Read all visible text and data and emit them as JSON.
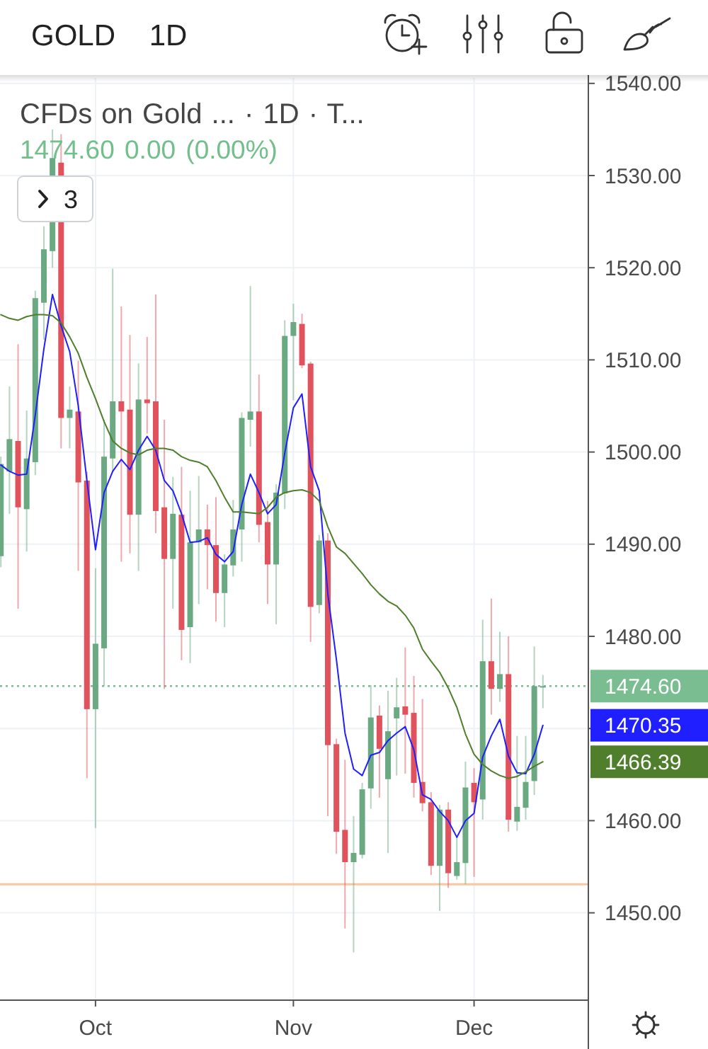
{
  "chart_data": {
    "type": "candlestick",
    "title": "GOLD 1D",
    "subtitle": "CFDs on Gold ... · 1D · T...",
    "annotations": [
      "1474.60 0.00 (0.00%)",
      "3",
      "1470.35",
      "1466.39"
    ],
    "categories": [
      null,
      null,
      null,
      null,
      null,
      null,
      null,
      null,
      null,
      null,
      null,
      "Oct",
      null,
      null,
      null,
      null,
      null,
      null,
      null,
      null,
      null,
      null,
      null,
      null,
      null,
      null,
      null,
      null,
      null,
      null,
      null,
      null,
      null,
      null,
      "Nov",
      null,
      null,
      null,
      null,
      null,
      null,
      null,
      null,
      null,
      null,
      null,
      null,
      null,
      null,
      null,
      null,
      null,
      null,
      null,
      null,
      "Dec",
      null,
      null,
      null,
      null,
      null,
      null,
      null,
      null
    ],
    "ylim": [
      1440.6,
      1540.6
    ],
    "yticks": [
      {
        "value": 1450,
        "label": "1450.00"
      },
      {
        "value": 1460,
        "label": "1460.00"
      },
      {
        "value": 1470,
        "label": null
      },
      {
        "value": 1480,
        "label": "1480.00"
      },
      {
        "value": 1490,
        "label": "1490.00"
      },
      {
        "value": 1500,
        "label": "1500.00"
      },
      {
        "value": 1510,
        "label": "1510.00"
      },
      {
        "value": 1520,
        "label": "1520.00"
      },
      {
        "value": 1530,
        "label": "1530.00"
      },
      {
        "value": 1540,
        "label": "1540.00"
      }
    ],
    "grid": true,
    "ref_lines": [
      {
        "axis": "y",
        "value": 1474.6,
        "label": "1474.60",
        "color": "#79bd90",
        "line_style": "dotted"
      },
      {
        "axis": "y",
        "value": 1453.1,
        "color": "#f8c6a0",
        "line_style": "solid"
      }
    ],
    "ohlc": [
      [
        1488.7,
        1499.5,
        1487.5,
        1498.7
      ],
      [
        1497.9,
        1507.1,
        1493.3,
        1501.4
      ],
      [
        1501.2,
        1511.7,
        1483.0,
        1494.0
      ],
      [
        1493.8,
        1504.5,
        1489.2,
        1499.3
      ],
      [
        1498.9,
        1517.5,
        1497.5,
        1516.7
      ],
      [
        1516.2,
        1524.5,
        1512.2,
        1522.0
      ],
      [
        1521.8,
        1535.0,
        1520.0,
        1531.9
      ],
      [
        1531.4,
        1534.5,
        1500.4,
        1503.7
      ],
      [
        1503.7,
        1507.1,
        1500.4,
        1504.6
      ],
      [
        1504.4,
        1509.9,
        1487.1,
        1496.7
      ],
      [
        1496.9,
        1497.9,
        1464.6,
        1472.1
      ],
      [
        1472.1,
        1487.4,
        1459.2,
        1479.2
      ],
      [
        1478.7,
        1503.5,
        1474.6,
        1499.5
      ],
      [
        1499.3,
        1519.9,
        1497.9,
        1505.5
      ],
      [
        1505.5,
        1515.8,
        1488.1,
        1504.4
      ],
      [
        1504.6,
        1512.7,
        1489.0,
        1493.2
      ],
      [
        1493.2,
        1509.6,
        1487.1,
        1505.7
      ],
      [
        1505.7,
        1512.5,
        1502.0,
        1505.3
      ],
      [
        1505.5,
        1517.1,
        1491.2,
        1493.6
      ],
      [
        1494.0,
        1503.5,
        1474.3,
        1488.4
      ],
      [
        1488.4,
        1497.3,
        1483.0,
        1493.3
      ],
      [
        1493.2,
        1498.4,
        1477.4,
        1480.7
      ],
      [
        1481.0,
        1495.8,
        1477.1,
        1490.2
      ],
      [
        1490.2,
        1497.4,
        1483.5,
        1491.6
      ],
      [
        1491.6,
        1494.3,
        1485.1,
        1489.9
      ],
      [
        1489.9,
        1495.1,
        1481.6,
        1484.7
      ],
      [
        1484.7,
        1488.9,
        1481.0,
        1487.8
      ],
      [
        1487.7,
        1494.8,
        1486.5,
        1491.6
      ],
      [
        1491.6,
        1504.3,
        1488.1,
        1503.7
      ],
      [
        1503.5,
        1518.0,
        1500.6,
        1504.4
      ],
      [
        1504.4,
        1508.4,
        1490.2,
        1492.1
      ],
      [
        1492.4,
        1494.7,
        1483.5,
        1487.8
      ],
      [
        1487.8,
        1496.5,
        1481.3,
        1495.6
      ],
      [
        1495.5,
        1514.3,
        1493.8,
        1512.6
      ],
      [
        1512.6,
        1516.1,
        1505.6,
        1514.1
      ],
      [
        1513.9,
        1515.0,
        1509.1,
        1509.4
      ],
      [
        1509.6,
        1509.8,
        1479.4,
        1483.2
      ],
      [
        1483.4,
        1491.0,
        1482.5,
        1490.4
      ],
      [
        1490.4,
        1491.2,
        1460.5,
        1468.2
      ],
      [
        1468.3,
        1468.9,
        1456.4,
        1458.8
      ],
      [
        1459.0,
        1466.6,
        1448.3,
        1455.5
      ],
      [
        1455.5,
        1460.5,
        1445.7,
        1456.5
      ],
      [
        1456.3,
        1464.1,
        1455.9,
        1463.4
      ],
      [
        1463.5,
        1474.7,
        1461.3,
        1471.2
      ],
      [
        1471.4,
        1472.5,
        1462.5,
        1467.8
      ],
      [
        1464.5,
        1474.1,
        1456.5,
        1469.7
      ],
      [
        1471.1,
        1475.5,
        1464.9,
        1472.3
      ],
      [
        1472.4,
        1478.8,
        1465.1,
        1471.5
      ],
      [
        1471.7,
        1475.7,
        1462.5,
        1464.1
      ],
      [
        1464.2,
        1473.2,
        1461.0,
        1461.9
      ],
      [
        1462.0,
        1463.1,
        1454.1,
        1455.1
      ],
      [
        1455.1,
        1461.7,
        1450.2,
        1461.2
      ],
      [
        1461.2,
        1462.0,
        1452.7,
        1454.3
      ],
      [
        1454.0,
        1458.2,
        1453.6,
        1455.5
      ],
      [
        1455.4,
        1466.4,
        1453.1,
        1463.6
      ],
      [
        1464.1,
        1465.7,
        1453.9,
        1462.0
      ],
      [
        1462.3,
        1481.8,
        1460.1,
        1477.3
      ],
      [
        1477.3,
        1484.1,
        1471.5,
        1474.3
      ],
      [
        1474.3,
        1480.5,
        1472.9,
        1475.9
      ],
      [
        1475.9,
        1480.0,
        1458.8,
        1460.1
      ],
      [
        1459.9,
        1469.2,
        1458.9,
        1461.5
      ],
      [
        1461.4,
        1469.2,
        1460.1,
        1464.2
      ],
      [
        1464.3,
        1478.9,
        1462.8,
        1474.6
      ],
      [
        1474.6,
        1475.8,
        1472.2,
        1474.6
      ]
    ],
    "colors": [
      "#6aa982",
      "#6aa982",
      "#e0535d",
      "#6aa982",
      "#6aa982",
      "#6aa982",
      "#6aa982",
      "#e0535d",
      "#6aa982",
      "#e0535d",
      "#e0535d",
      "#6aa982",
      "#6aa982",
      "#6aa982",
      "#e0535d",
      "#e0535d",
      "#6aa982",
      "#e0535d",
      "#e0535d",
      "#e0535d",
      "#6aa982",
      "#e0535d",
      "#6aa982",
      "#6aa982",
      "#e0535d",
      "#e0535d",
      "#6aa982",
      "#6aa982",
      "#6aa982",
      "#6aa982",
      "#e0535d",
      "#e0535d",
      "#6aa982",
      "#6aa982",
      "#6aa982",
      "#e0535d",
      "#e0535d",
      "#6aa982",
      "#e0535d",
      "#e0535d",
      "#e0535d",
      "#6aa982",
      "#6aa982",
      "#6aa982",
      "#e0535d",
      "#6aa982",
      "#6aa982",
      "#e0535d",
      "#e0535d",
      "#e0535d",
      "#e0535d",
      "#6aa982",
      "#e0535d",
      "#6aa982",
      "#6aa982",
      "#e0535d",
      "#6aa982",
      "#e0535d",
      "#6aa982",
      "#e0535d",
      "#6aa982",
      "#6aa982",
      "#6aa982",
      "#6aa982"
    ],
    "series": [
      {
        "type": "line",
        "color": "#1f1fff",
        "values": [
          1498.6,
          1497.9,
          1497.5,
          1497.6,
          1504.0,
          1511.2,
          1517.1,
          1513.7,
          1510.9,
          1505.0,
          1496.9,
          1489.4,
          1495.6,
          1497.9,
          1499.2,
          1498.1,
          1500.2,
          1501.7,
          1500.2,
          1496.9,
          1495.8,
          1493.3,
          1490.2,
          1490.3,
          1490.7,
          1488.9,
          1488.1,
          1489.2,
          1494.3,
          1497.6,
          1495.6,
          1493.3,
          1494.3,
          1499.9,
          1504.8,
          1506.3,
          1498.4,
          1495.8,
          1484.6,
          1477.5,
          1469.5,
          1465.6,
          1464.9,
          1467.1,
          1467.4,
          1468.7,
          1469.5,
          1470.2,
          1467.7,
          1462.8,
          1462.3,
          1461.0,
          1460.0,
          1458.2,
          1460.0,
          1460.8,
          1466.9,
          1469.2,
          1471.0,
          1467.0,
          1465.2,
          1465.1,
          1467.2,
          1470.35
        ]
      },
      {
        "type": "line",
        "color": "#4f7f2c",
        "values": [
          1514.9,
          1514.5,
          1514.3,
          1514.7,
          1514.9,
          1514.9,
          1514.8,
          1514.0,
          1512.5,
          1510.7,
          1508.1,
          1505.8,
          1503.3,
          1501.2,
          1500.4,
          1499.9,
          1499.7,
          1500.2,
          1500.4,
          1500.4,
          1500.2,
          1499.5,
          1499.1,
          1498.9,
          1498.4,
          1496.9,
          1495.1,
          1493.5,
          1493.5,
          1493.4,
          1493.3,
          1494.0,
          1495.1,
          1495.6,
          1495.8,
          1495.9,
          1495.6,
          1494.7,
          1491.9,
          1489.7,
          1489.0,
          1487.9,
          1486.8,
          1485.6,
          1484.6,
          1483.8,
          1483.3,
          1482.3,
          1480.9,
          1478.6,
          1477.3,
          1476.1,
          1474.4,
          1472.3,
          1469.4,
          1467.2,
          1466.1,
          1465.4,
          1464.9,
          1464.6,
          1464.8,
          1465.3,
          1465.9,
          1466.39
        ]
      }
    ]
  }
}
